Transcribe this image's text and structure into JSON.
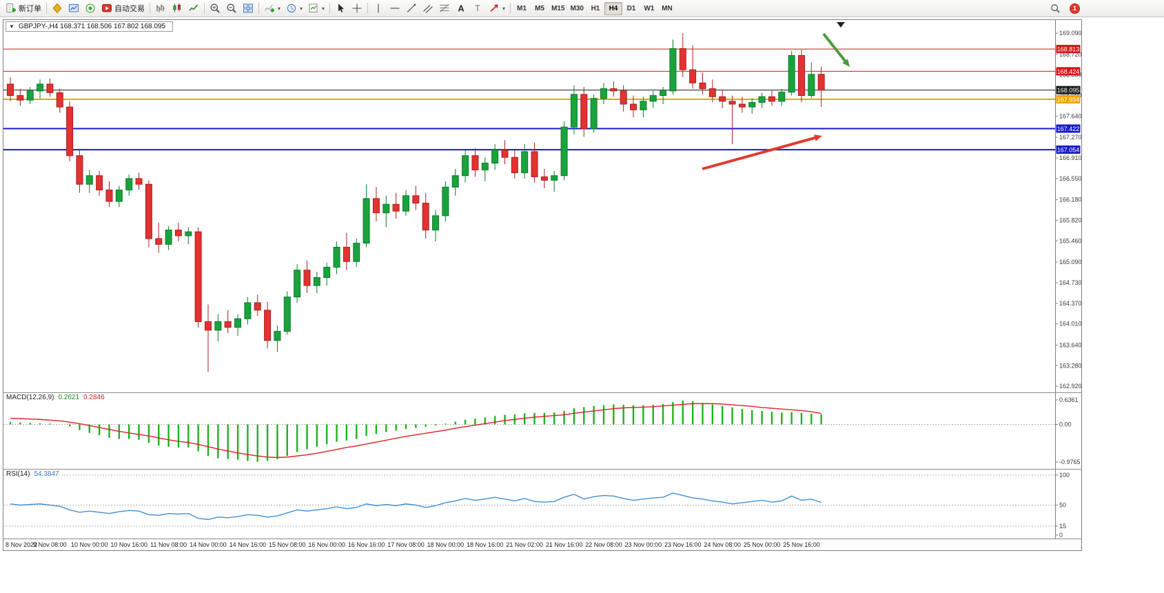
{
  "toolbar": {
    "notification_count": "1",
    "groups": [
      {
        "items": [
          {
            "name": "new-order-button",
            "icon": "doc-new",
            "label": "新订单"
          }
        ]
      },
      {
        "items": [
          {
            "name": "profiles-button",
            "icon": "profiles"
          },
          {
            "name": "charts-bar-button",
            "icon": "chart-window"
          },
          {
            "name": "signals-button",
            "icon": "signal"
          },
          {
            "name": "autotrading-button",
            "icon": "autotrade",
            "label": "自动交易"
          }
        ]
      },
      {
        "items": [
          {
            "name": "bar-chart-button",
            "icon": "bars"
          },
          {
            "name": "candlestick-chart-button",
            "icon": "candles"
          },
          {
            "name": "line-chart-button",
            "icon": "linechart"
          }
        ]
      },
      {
        "items": [
          {
            "name": "zoom-in-button",
            "icon": "zoom-in"
          },
          {
            "name": "zoom-out-button",
            "icon": "zoom-out"
          },
          {
            "name": "tile-windows-button",
            "icon": "tiles"
          }
        ]
      },
      {
        "items": [
          {
            "name": "indicators-button",
            "icon": "indicator-add",
            "caret": true
          },
          {
            "name": "periods-button",
            "icon": "clock",
            "caret": true
          },
          {
            "name": "templates-button",
            "icon": "template",
            "caret": true
          }
        ]
      },
      {
        "items": [
          {
            "name": "cursor-button",
            "icon": "cursor"
          },
          {
            "name": "crosshair-button",
            "icon": "crosshair"
          }
        ]
      },
      {
        "items": [
          {
            "name": "vertical-line-button",
            "icon": "vline"
          },
          {
            "name": "horizontal-line-button",
            "icon": "hline"
          },
          {
            "name": "trendline-button",
            "icon": "tline"
          },
          {
            "name": "channel-button",
            "icon": "channel"
          },
          {
            "name": "fibonacci-button",
            "icon": "fibo"
          },
          {
            "name": "text-button",
            "icon": "text-a"
          },
          {
            "name": "text-label-button",
            "icon": "label-t"
          },
          {
            "name": "arrows-button",
            "icon": "arrow-obj",
            "caret": true
          }
        ]
      }
    ],
    "timeframes": {
      "options": [
        "M1",
        "M5",
        "M15",
        "M30",
        "H1",
        "H4",
        "D1",
        "W1",
        "MN"
      ],
      "active": "H4"
    }
  },
  "chart": {
    "symbol": "GBPJPY-",
    "timeframe": "H4",
    "symbol_ohlc": "GBPJPY-,H4 168.371 168.506 167.802 168.095"
  },
  "chart_data": {
    "type": "candlestick",
    "symbol": "GBPJPY-",
    "period": "H4",
    "current": {
      "open": 168.371,
      "high": 168.506,
      "low": 167.802,
      "close": 168.095
    },
    "y_axis_labels": [
      "169.090",
      "168.720",
      "168.360",
      "168.000",
      "167.640",
      "167.270",
      "166.910",
      "166.550",
      "166.180",
      "165.820",
      "165.460",
      "165.090",
      "164.730",
      "164.370",
      "164.010",
      "163.640",
      "163.280",
      "162.920"
    ],
    "levels": [
      {
        "price": 168.813,
        "label": "168.813",
        "color": "#d01616",
        "width": 1
      },
      {
        "price": 168.424,
        "label": "168.424",
        "color": "#d01616",
        "width": 1
      },
      {
        "price": 168.095,
        "label": "168.095",
        "color": "#1a1a1a",
        "width": 1
      },
      {
        "price": 167.934,
        "label": "167.934",
        "color": "#efa200",
        "width": 2
      },
      {
        "price": 167.422,
        "label": "167.422",
        "color": "#1717cf",
        "width": 2
      },
      {
        "price": 167.054,
        "label": "167.054",
        "color": "#1717cf",
        "width": 2
      }
    ],
    "x_labels": [
      "8 Nov 2022",
      "9 Nov 08:00",
      "10 Nov 00:00",
      "10 Nov 16:00",
      "11 Nov 08:00",
      "14 Nov 00:00",
      "14 Nov 16:00",
      "15 Nov 08:00",
      "16 Nov 00:00",
      "16 Nov 16:00",
      "17 Nov 08:00",
      "18 Nov 00:00",
      "18 Nov 16:00",
      "21 Nov 02:00",
      "21 Nov 16:00",
      "22 Nov 08:00",
      "23 Nov 00:00",
      "23 Nov 16:00",
      "24 Nov 08:00",
      "25 Nov 00:00",
      "25 Nov 16:00"
    ],
    "candles": [
      [
        168.2,
        168.32,
        167.9,
        168.0
      ],
      [
        168.0,
        168.12,
        167.82,
        167.92
      ],
      [
        167.92,
        168.15,
        167.85,
        168.08
      ],
      [
        168.08,
        168.28,
        167.95,
        168.2
      ],
      [
        168.2,
        168.3,
        167.98,
        168.05
      ],
      [
        168.05,
        168.12,
        167.7,
        167.8
      ],
      [
        167.8,
        167.9,
        166.85,
        166.95
      ],
      [
        166.95,
        167.05,
        166.3,
        166.45
      ],
      [
        166.45,
        166.7,
        166.3,
        166.6
      ],
      [
        166.6,
        166.68,
        166.25,
        166.35
      ],
      [
        166.35,
        166.5,
        166.05,
        166.15
      ],
      [
        166.15,
        166.42,
        166.05,
        166.35
      ],
      [
        166.35,
        166.62,
        166.25,
        166.55
      ],
      [
        166.55,
        166.65,
        166.35,
        166.45
      ],
      [
        166.45,
        166.52,
        165.35,
        165.5
      ],
      [
        165.5,
        165.78,
        165.25,
        165.4
      ],
      [
        165.4,
        165.72,
        165.3,
        165.65
      ],
      [
        165.65,
        165.78,
        165.45,
        165.55
      ],
      [
        165.55,
        165.7,
        165.4,
        165.62
      ],
      [
        165.62,
        165.7,
        163.95,
        164.05
      ],
      [
        164.05,
        164.35,
        163.17,
        163.9
      ],
      [
        163.9,
        164.18,
        163.7,
        164.05
      ],
      [
        164.05,
        164.25,
        163.85,
        163.95
      ],
      [
        163.95,
        164.18,
        163.8,
        164.1
      ],
      [
        164.1,
        164.48,
        164.0,
        164.38
      ],
      [
        164.38,
        164.52,
        164.15,
        164.25
      ],
      [
        164.25,
        164.4,
        163.58,
        163.72
      ],
      [
        163.72,
        163.98,
        163.52,
        163.88
      ],
      [
        163.88,
        164.58,
        163.82,
        164.48
      ],
      [
        164.48,
        165.05,
        164.38,
        164.95
      ],
      [
        164.95,
        165.12,
        164.55,
        164.68
      ],
      [
        164.68,
        164.92,
        164.55,
        164.82
      ],
      [
        164.82,
        165.08,
        164.68,
        165.0
      ],
      [
        165.0,
        165.45,
        164.88,
        165.35
      ],
      [
        165.35,
        165.6,
        164.95,
        165.1
      ],
      [
        165.1,
        165.5,
        165.0,
        165.42
      ],
      [
        165.42,
        166.45,
        165.35,
        166.2
      ],
      [
        166.2,
        166.4,
        165.8,
        165.95
      ],
      [
        165.95,
        166.25,
        165.7,
        166.1
      ],
      [
        166.1,
        166.3,
        165.85,
        165.98
      ],
      [
        165.98,
        166.35,
        165.9,
        166.25
      ],
      [
        166.25,
        166.42,
        166.0,
        166.12
      ],
      [
        166.12,
        166.3,
        165.5,
        165.65
      ],
      [
        165.65,
        166.0,
        165.45,
        165.9
      ],
      [
        165.9,
        166.5,
        165.8,
        166.4
      ],
      [
        166.4,
        166.72,
        166.25,
        166.6
      ],
      [
        166.6,
        167.05,
        166.48,
        166.95
      ],
      [
        166.95,
        167.08,
        166.58,
        166.7
      ],
      [
        166.7,
        166.92,
        166.5,
        166.82
      ],
      [
        166.82,
        167.15,
        166.7,
        167.05
      ],
      [
        167.05,
        167.22,
        166.8,
        166.92
      ],
      [
        166.92,
        167.05,
        166.55,
        166.65
      ],
      [
        166.65,
        167.15,
        166.55,
        167.02
      ],
      [
        167.02,
        167.18,
        166.48,
        166.58
      ],
      [
        166.58,
        166.72,
        166.38,
        166.52
      ],
      [
        166.52,
        166.68,
        166.32,
        166.6
      ],
      [
        166.6,
        167.55,
        166.52,
        167.45
      ],
      [
        167.45,
        168.18,
        167.32,
        168.02
      ],
      [
        168.02,
        168.15,
        167.28,
        167.42
      ],
      [
        167.42,
        168.02,
        167.35,
        167.95
      ],
      [
        167.95,
        168.22,
        167.85,
        168.12
      ],
      [
        168.12,
        168.25,
        167.98,
        168.08
      ],
      [
        168.08,
        168.18,
        167.72,
        167.85
      ],
      [
        167.85,
        168.0,
        167.62,
        167.75
      ],
      [
        167.75,
        167.98,
        167.62,
        167.9
      ],
      [
        167.9,
        168.08,
        167.78,
        168.0
      ],
      [
        168.0,
        168.15,
        167.85,
        168.08
      ],
      [
        168.08,
        168.98,
        168.02,
        168.82
      ],
      [
        168.82,
        169.09,
        168.32,
        168.45
      ],
      [
        168.45,
        168.88,
        168.12,
        168.22
      ],
      [
        168.22,
        168.4,
        168.02,
        168.12
      ],
      [
        168.12,
        168.28,
        167.88,
        167.98
      ],
      [
        167.98,
        168.1,
        167.78,
        167.9
      ],
      [
        167.9,
        168.0,
        167.15,
        167.85
      ],
      [
        167.85,
        167.98,
        167.7,
        167.8
      ],
      [
        167.8,
        167.95,
        167.68,
        167.88
      ],
      [
        167.88,
        168.05,
        167.78,
        167.98
      ],
      [
        167.98,
        168.1,
        167.82,
        167.9
      ],
      [
        167.9,
        168.12,
        167.82,
        168.06
      ],
      [
        168.06,
        168.78,
        168.0,
        168.7
      ],
      [
        168.7,
        168.8,
        167.88,
        168.0
      ],
      [
        168.0,
        168.58,
        167.95,
        168.37
      ],
      [
        168.371,
        168.506,
        167.802,
        168.095
      ]
    ],
    "macd": {
      "title": "MACD(12,26,9)",
      "main_value": "0.2621",
      "signal_value": "0.2846",
      "scale_labels": [
        "0.6361",
        "0.00",
        "-0.9765"
      ],
      "histogram": [
        0.06,
        0.05,
        0.04,
        0.03,
        0.02,
        0.0,
        -0.05,
        -0.15,
        -0.22,
        -0.28,
        -0.35,
        -0.38,
        -0.38,
        -0.4,
        -0.48,
        -0.55,
        -0.58,
        -0.6,
        -0.6,
        -0.7,
        -0.82,
        -0.88,
        -0.9,
        -0.92,
        -0.95,
        -0.97,
        -0.95,
        -0.9,
        -0.82,
        -0.72,
        -0.65,
        -0.58,
        -0.52,
        -0.45,
        -0.42,
        -0.38,
        -0.3,
        -0.25,
        -0.2,
        -0.16,
        -0.12,
        -0.09,
        -0.06,
        -0.03,
        0.02,
        0.07,
        0.12,
        0.15,
        0.18,
        0.22,
        0.25,
        0.26,
        0.29,
        0.3,
        0.3,
        0.31,
        0.35,
        0.42,
        0.45,
        0.48,
        0.5,
        0.52,
        0.51,
        0.5,
        0.5,
        0.51,
        0.53,
        0.58,
        0.62,
        0.6,
        0.56,
        0.52,
        0.48,
        0.44,
        0.4,
        0.37,
        0.35,
        0.33,
        0.31,
        0.32,
        0.3,
        0.28,
        0.2621
      ],
      "signal_line": [
        0.16,
        0.15,
        0.14,
        0.13,
        0.11,
        0.09,
        0.06,
        0.02,
        -0.03,
        -0.08,
        -0.13,
        -0.18,
        -0.22,
        -0.26,
        -0.3,
        -0.35,
        -0.4,
        -0.44,
        -0.47,
        -0.52,
        -0.58,
        -0.64,
        -0.69,
        -0.74,
        -0.78,
        -0.82,
        -0.85,
        -0.86,
        -0.85,
        -0.82,
        -0.79,
        -0.75,
        -0.7,
        -0.65,
        -0.6,
        -0.56,
        -0.51,
        -0.46,
        -0.41,
        -0.36,
        -0.31,
        -0.27,
        -0.23,
        -0.19,
        -0.15,
        -0.1,
        -0.06,
        -0.02,
        0.02,
        0.06,
        0.1,
        0.13,
        0.16,
        0.19,
        0.21,
        0.23,
        0.25,
        0.29,
        0.32,
        0.35,
        0.38,
        0.41,
        0.43,
        0.44,
        0.45,
        0.46,
        0.48,
        0.5,
        0.52,
        0.54,
        0.54,
        0.54,
        0.53,
        0.51,
        0.49,
        0.47,
        0.44,
        0.42,
        0.4,
        0.38,
        0.36,
        0.33,
        0.2846
      ]
    },
    "rsi": {
      "title": "RSI(14)",
      "value": "54.3847",
      "scale_labels": [
        "100",
        "50",
        "15",
        "0"
      ],
      "values": [
        52,
        50,
        51,
        52,
        50,
        48,
        42,
        38,
        40,
        38,
        36,
        39,
        41,
        40,
        34,
        33,
        36,
        35,
        36,
        28,
        26,
        30,
        29,
        31,
        34,
        33,
        30,
        32,
        37,
        42,
        40,
        42,
        44,
        47,
        44,
        46,
        52,
        49,
        51,
        49,
        52,
        50,
        46,
        49,
        54,
        57,
        61,
        58,
        60,
        63,
        60,
        57,
        61,
        56,
        55,
        56,
        63,
        68,
        60,
        64,
        66,
        65,
        61,
        58,
        60,
        62,
        63,
        70,
        66,
        62,
        60,
        57,
        55,
        52,
        54,
        56,
        58,
        55,
        57,
        65,
        58,
        60,
        54.3847
      ]
    },
    "annotations": [
      {
        "name": "green-arrow",
        "from": [
          1190,
          20
        ],
        "to": [
          1228,
          68
        ],
        "color": "#4c9a3d",
        "width": 4
      },
      {
        "name": "red-arrow",
        "from": [
          1014,
          216
        ],
        "to": [
          1188,
          168
        ],
        "color": "#e23a2e",
        "width": 4
      }
    ],
    "colors": {
      "bull": "#19a33d",
      "bull_stroke": "#0c7a2a",
      "bear": "#e23232",
      "bear_stroke": "#a81f1f",
      "macd_hist": "#1fb11f",
      "macd_signal": "#e02020",
      "rsi_line": "#3f8fd6"
    }
  }
}
